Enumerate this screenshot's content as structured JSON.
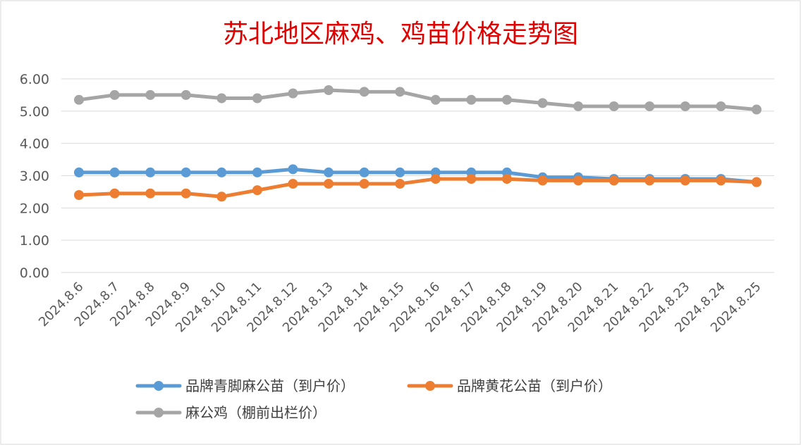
{
  "chart_data": {
    "type": "line",
    "title": "苏北地区麻鸡、鸡苗价格走势图",
    "xlabel": "",
    "ylabel": "",
    "ylim": [
      0,
      6
    ],
    "yticks": [
      "0.00",
      "1.00",
      "2.00",
      "3.00",
      "4.00",
      "5.00",
      "6.00"
    ],
    "grid": true,
    "legend_position": "bottom",
    "categories": [
      "2024.8.6",
      "2024.8.7",
      "2024.8.8",
      "2024.8.9",
      "2024.8.10",
      "2024.8.11",
      "2024.8.12",
      "2024.8.13",
      "2024.8.14",
      "2024.8.15",
      "2024.8.16",
      "2024.8.17",
      "2024.8.18",
      "2024.8.19",
      "2024.8.20",
      "2024.8.21",
      "2024.8.22",
      "2024.8.23",
      "2024.8.24",
      "2024.8.25"
    ],
    "series": [
      {
        "name": "品牌青脚麻公苗（到户价）",
        "color": "#5b9bd5",
        "values": [
          3.1,
          3.1,
          3.1,
          3.1,
          3.1,
          3.1,
          3.2,
          3.1,
          3.1,
          3.1,
          3.1,
          3.1,
          3.1,
          2.95,
          2.95,
          2.9,
          2.9,
          2.9,
          2.9,
          2.8
        ]
      },
      {
        "name": "品牌黄花公苗（到户价）",
        "color": "#ed7d31",
        "values": [
          2.4,
          2.45,
          2.45,
          2.45,
          2.35,
          2.55,
          2.75,
          2.75,
          2.75,
          2.75,
          2.9,
          2.9,
          2.9,
          2.85,
          2.85,
          2.85,
          2.85,
          2.85,
          2.85,
          2.8
        ]
      },
      {
        "name": "麻公鸡（棚前出栏价）",
        "color": "#a5a5a5",
        "values": [
          5.35,
          5.5,
          5.5,
          5.5,
          5.4,
          5.4,
          5.55,
          5.65,
          5.6,
          5.6,
          5.35,
          5.35,
          5.35,
          5.25,
          5.15,
          5.15,
          5.15,
          5.15,
          5.15,
          5.05
        ]
      }
    ]
  }
}
